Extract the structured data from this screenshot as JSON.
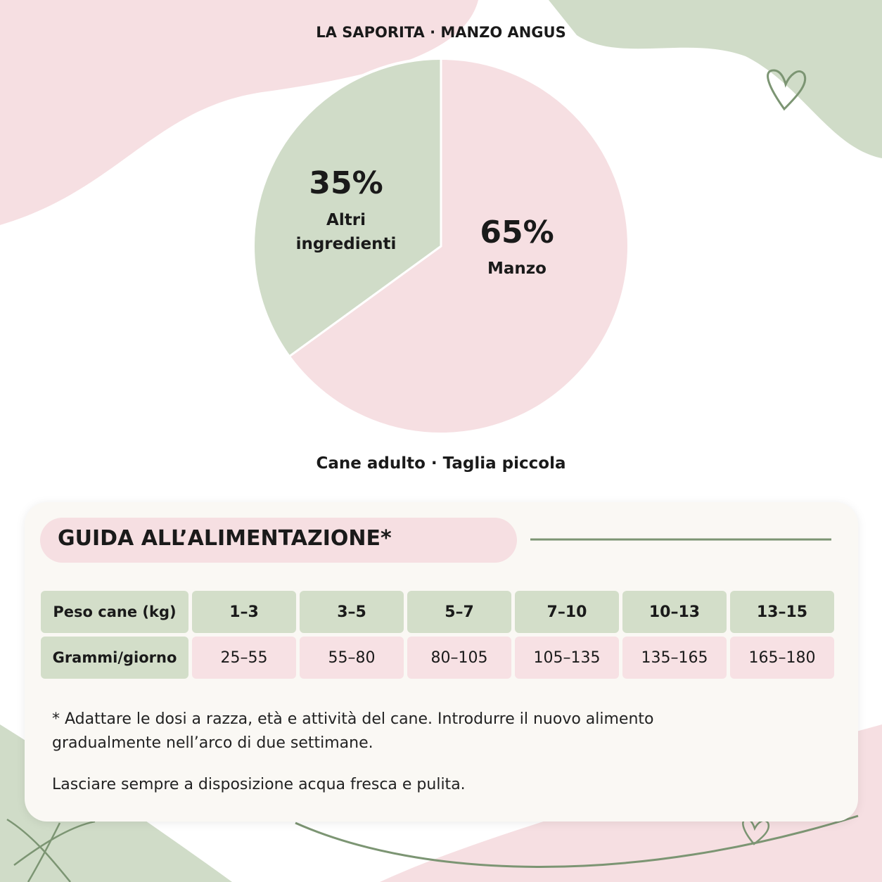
{
  "chart_data": {
    "type": "pie",
    "title": "LA SAPORITA · MANZO ANGUS",
    "subtitle": "Cane adulto · Taglia piccola",
    "categories": [
      "Manzo",
      "Altri ingredienti"
    ],
    "values": [
      65,
      35
    ],
    "value_labels": [
      "65%",
      "35%"
    ],
    "colors": [
      "#f6dfe2",
      "#d0dcc8"
    ]
  },
  "feeding_guide": {
    "title": "GUIDA ALL’ALIMENTAZIONE*",
    "table": {
      "rows": [
        [
          "Peso cane (kg)",
          "1–3",
          "3–5",
          "5–7",
          "7–10",
          "10–13",
          "13–15"
        ],
        [
          "Grammi/giorno",
          "25–55",
          "55–80",
          "80–105",
          "105–135",
          "135–165",
          "165–180"
        ]
      ]
    },
    "notes": [
      "* Adattare le dosi a razza, età e attività del cane. Introdurre il nuovo alimento gradualmente nell’arco di due settimane.",
      "Lasciare sempre a disposizione acqua fresca e pulita."
    ]
  }
}
